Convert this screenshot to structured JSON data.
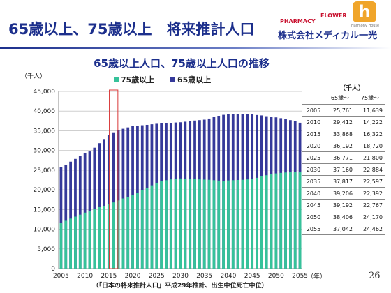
{
  "header": {
    "title": "65歳以上、75歳以上　将来推計人口",
    "company": "株式会社メディカル一光",
    "logo_pharmacy": "PHARMACY",
    "logo_flower": "FLOWER",
    "logo_h": "h",
    "logo_h_caption": "Harmony House"
  },
  "page_number": "26",
  "colors": {
    "series_75": "#36c29a",
    "series_65": "#35399a",
    "title_blue": "#1c2f8c",
    "highlight": "#d93a3a"
  },
  "chart_data": {
    "type": "bar",
    "title": "65歳以上人口、75歳以上人口の推移",
    "ylabel_unit": "（千人）",
    "xlabel_unit": "（年）",
    "source_note": "（「日本の将来推計人口」平成29年推計、出生中位死亡中位）",
    "ylim": [
      0,
      45000
    ],
    "yticks": [
      0,
      5000,
      10000,
      15000,
      20000,
      25000,
      30000,
      35000,
      40000,
      45000
    ],
    "ytick_labels": [
      "0",
      "5,000",
      "10,000",
      "15,000",
      "20,000",
      "25,000",
      "30,000",
      "35,000",
      "40,000",
      "45,000"
    ],
    "xtick_labels": [
      "2005",
      "2010",
      "2015",
      "2020",
      "2025",
      "2030",
      "2035",
      "2040",
      "2045",
      "2050",
      "2055"
    ],
    "grid": true,
    "legend_position": "top",
    "highlight_year": 2016,
    "x": [
      2005,
      2006,
      2007,
      2008,
      2009,
      2010,
      2011,
      2012,
      2013,
      2014,
      2015,
      2016,
      2017,
      2018,
      2019,
      2020,
      2021,
      2022,
      2023,
      2024,
      2025,
      2026,
      2027,
      2028,
      2029,
      2030,
      2031,
      2032,
      2033,
      2034,
      2035,
      2036,
      2037,
      2038,
      2039,
      2040,
      2041,
      2042,
      2043,
      2044,
      2045,
      2046,
      2047,
      2048,
      2049,
      2050,
      2051,
      2052,
      2053,
      2054,
      2055
    ],
    "series": [
      {
        "name": "75歳以上",
        "values": [
          11639,
          12150,
          12700,
          13200,
          13700,
          14222,
          14650,
          15150,
          15600,
          15950,
          16322,
          16800,
          17300,
          17800,
          18250,
          18720,
          19250,
          19850,
          20500,
          21150,
          21800,
          22150,
          22450,
          22650,
          22800,
          22884,
          22800,
          22750,
          22700,
          22650,
          22597,
          22550,
          22450,
          22350,
          22300,
          22392,
          22450,
          22500,
          22550,
          22650,
          22767,
          23050,
          23400,
          23700,
          23950,
          24170,
          24300,
          24400,
          24450,
          24460,
          24462
        ]
      },
      {
        "name": "65歳以上",
        "values": [
          25761,
          26400,
          27150,
          27850,
          28650,
          29412,
          29750,
          30700,
          31850,
          32900,
          33868,
          34600,
          35100,
          35500,
          35850,
          36192,
          36300,
          36400,
          36500,
          36650,
          36771,
          36850,
          36950,
          37000,
          37100,
          37160,
          37300,
          37450,
          37600,
          37700,
          37817,
          38100,
          38450,
          38800,
          39050,
          39206,
          39250,
          39250,
          39250,
          39200,
          39192,
          39000,
          38900,
          38700,
          38550,
          38406,
          38200,
          38000,
          37700,
          37450,
          37042
        ]
      }
    ]
  },
  "table": {
    "unit": "（千人）",
    "headers": [
      "",
      "65歳～",
      "75歳～"
    ],
    "rows": [
      [
        "2005",
        "25,761",
        "11,639"
      ],
      [
        "2010",
        "29,412",
        "14,222"
      ],
      [
        "2015",
        "33,868",
        "16,322"
      ],
      [
        "2020",
        "36,192",
        "18,720"
      ],
      [
        "2025",
        "36,771",
        "21,800"
      ],
      [
        "2030",
        "37,160",
        "22,884"
      ],
      [
        "2035",
        "37,817",
        "22,597"
      ],
      [
        "2040",
        "39,206",
        "22,392"
      ],
      [
        "2045",
        "39,192",
        "22,767"
      ],
      [
        "2050",
        "38,406",
        "24,170"
      ],
      [
        "2055",
        "37,042",
        "24,462"
      ]
    ]
  }
}
